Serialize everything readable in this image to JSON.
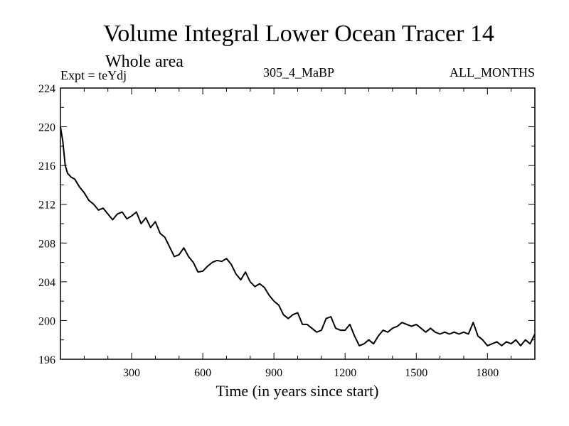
{
  "chart_data": {
    "type": "line",
    "title": "Volume Integral Lower Ocean Tracer 14",
    "subtitle": "Whole area",
    "left_label": "Expt = teYdj",
    "center_label": "305_4_MaBP",
    "right_label": "ALL_MONTHS",
    "xlabel": "Time (in years since start)",
    "ylabel": "",
    "xlim": [
      0,
      2000
    ],
    "ylim": [
      196,
      224
    ],
    "x_ticks": [
      300,
      600,
      900,
      1200,
      1500,
      1800
    ],
    "x_tick_labels": [
      "300",
      "600",
      "900",
      "1200",
      "1500",
      "1800"
    ],
    "y_ticks": [
      196,
      200,
      204,
      208,
      212,
      216,
      220,
      224
    ],
    "y_tick_labels": [
      "196",
      "200",
      "204",
      "208",
      "212",
      "216",
      "220",
      "224"
    ],
    "series": [
      {
        "name": "Lower Ocean Tracer 14",
        "color": "#000000",
        "x": [
          0,
          10,
          20,
          30,
          45,
          60,
          80,
          100,
          120,
          140,
          160,
          180,
          200,
          220,
          240,
          260,
          280,
          300,
          320,
          340,
          360,
          380,
          400,
          420,
          440,
          460,
          480,
          500,
          520,
          540,
          560,
          580,
          600,
          620,
          640,
          660,
          680,
          700,
          720,
          740,
          760,
          780,
          800,
          820,
          840,
          860,
          880,
          900,
          920,
          940,
          960,
          980,
          1000,
          1020,
          1040,
          1060,
          1080,
          1100,
          1120,
          1140,
          1160,
          1180,
          1200,
          1220,
          1240,
          1260,
          1280,
          1300,
          1320,
          1340,
          1360,
          1380,
          1400,
          1420,
          1440,
          1460,
          1480,
          1500,
          1520,
          1540,
          1560,
          1580,
          1600,
          1620,
          1640,
          1660,
          1680,
          1700,
          1720,
          1740,
          1760,
          1780,
          1800,
          1820,
          1840,
          1860,
          1880,
          1900,
          1920,
          1940,
          1960,
          1980,
          2000
        ],
        "values": [
          220.0,
          218.5,
          216.0,
          215.2,
          214.8,
          214.6,
          213.8,
          213.2,
          212.4,
          212.0,
          211.4,
          211.6,
          211.0,
          210.4,
          211.0,
          211.2,
          210.5,
          210.8,
          211.2,
          210.0,
          210.6,
          209.6,
          210.2,
          209.0,
          208.6,
          207.6,
          206.6,
          206.8,
          207.5,
          206.6,
          206.0,
          205.0,
          205.1,
          205.6,
          206.0,
          206.2,
          206.1,
          206.4,
          205.8,
          204.8,
          204.2,
          205.0,
          204.0,
          203.5,
          203.8,
          203.4,
          202.6,
          202.0,
          201.6,
          200.6,
          200.2,
          200.6,
          200.8,
          199.6,
          199.6,
          199.2,
          198.8,
          199.0,
          200.2,
          200.4,
          199.2,
          199.0,
          199.0,
          199.6,
          198.4,
          197.4,
          197.6,
          198.0,
          197.6,
          198.4,
          199.0,
          198.8,
          199.2,
          199.4,
          199.8,
          199.6,
          199.4,
          199.6,
          199.2,
          198.8,
          199.2,
          198.8,
          198.6,
          198.8,
          198.6,
          198.8,
          198.6,
          198.8,
          198.6,
          199.8,
          198.4,
          198.0,
          197.4,
          197.6,
          197.8,
          197.4,
          197.8,
          197.6,
          198.0,
          197.4,
          198.0,
          197.6,
          198.6
        ]
      }
    ]
  }
}
